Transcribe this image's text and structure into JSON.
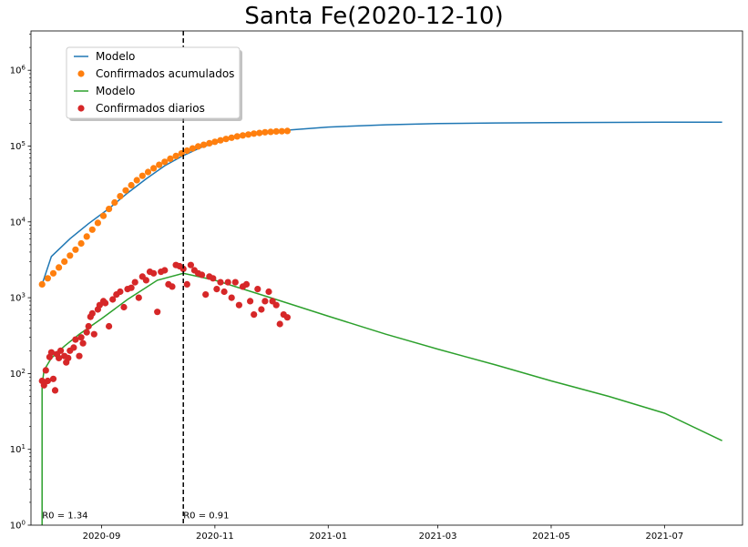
{
  "chart_data": {
    "type": "line",
    "title": "Santa Fe(2020-12-10)",
    "xlabel": "",
    "ylabel": "",
    "yscale": "log",
    "ylim": [
      1,
      3300000
    ],
    "xlim": [
      "2020-07-25",
      "2021-08-12"
    ],
    "grid": false,
    "legend_position": "top-left",
    "x_ticks": [
      "2020-09",
      "2020-11",
      "2021-01",
      "2021-03",
      "2021-05",
      "2021-07"
    ],
    "x_tick_dates": [
      "2020-09-01",
      "2020-11-01",
      "2021-01-01",
      "2021-03-01",
      "2021-05-01",
      "2021-07-01"
    ],
    "y_ticks": [
      {
        "value": 1,
        "base": "10",
        "exp": "0"
      },
      {
        "value": 10,
        "base": "10",
        "exp": "1"
      },
      {
        "value": 100,
        "base": "10",
        "exp": "2"
      },
      {
        "value": 1000,
        "base": "10",
        "exp": "3"
      },
      {
        "value": 10000,
        "base": "10",
        "exp": "4"
      },
      {
        "value": 100000,
        "base": "10",
        "exp": "5"
      },
      {
        "value": 1000000,
        "base": "10",
        "exp": "6"
      }
    ],
    "vline": {
      "date": "2020-10-15",
      "style": "dashed",
      "color": "#000000"
    },
    "annotations": [
      {
        "text": "R0 = 1.34",
        "date": "2020-07-31",
        "y": 1.2
      },
      {
        "text": "R0 = 0.91",
        "date": "2020-10-15",
        "y": 1.2
      }
    ],
    "series": [
      {
        "name": "Modelo",
        "kind": "line",
        "color": "#1f77b4",
        "x": [
          "2020-07-31",
          "2020-08-05",
          "2020-08-15",
          "2020-08-25",
          "2020-09-05",
          "2020-09-15",
          "2020-09-25",
          "2020-10-05",
          "2020-10-15",
          "2020-10-25",
          "2020-11-05",
          "2020-11-15",
          "2020-11-25",
          "2020-12-10",
          "2021-01-01",
          "2021-02-01",
          "2021-03-01",
          "2021-04-01",
          "2021-05-01",
          "2021-06-01",
          "2021-07-01",
          "2021-08-01"
        ],
        "y": [
          1500,
          3500,
          6000,
          9500,
          15000,
          24000,
          37000,
          55000,
          75000,
          97000,
          118000,
          135000,
          148000,
          162000,
          178000,
          191000,
          198000,
          202000,
          204000,
          205000,
          206000,
          206000
        ]
      },
      {
        "name": "Confirmados acumulados",
        "kind": "scatter",
        "color": "#ff7f0e",
        "x": [
          "2020-07-31",
          "2020-08-03",
          "2020-08-06",
          "2020-08-09",
          "2020-08-12",
          "2020-08-15",
          "2020-08-18",
          "2020-08-21",
          "2020-08-24",
          "2020-08-27",
          "2020-08-30",
          "2020-09-02",
          "2020-09-05",
          "2020-09-08",
          "2020-09-11",
          "2020-09-14",
          "2020-09-17",
          "2020-09-20",
          "2020-09-23",
          "2020-09-26",
          "2020-09-29",
          "2020-10-02",
          "2020-10-05",
          "2020-10-08",
          "2020-10-11",
          "2020-10-14",
          "2020-10-17",
          "2020-10-20",
          "2020-10-23",
          "2020-10-26",
          "2020-10-29",
          "2020-11-01",
          "2020-11-04",
          "2020-11-07",
          "2020-11-10",
          "2020-11-13",
          "2020-11-16",
          "2020-11-19",
          "2020-11-22",
          "2020-11-25",
          "2020-11-28",
          "2020-12-01",
          "2020-12-04",
          "2020-12-07",
          "2020-12-10"
        ],
        "y": [
          1500,
          1800,
          2100,
          2500,
          3000,
          3600,
          4300,
          5200,
          6400,
          7900,
          9700,
          12000,
          14800,
          18000,
          21800,
          26000,
          30500,
          35500,
          40500,
          45500,
          51000,
          56500,
          62000,
          68000,
          74000,
          80000,
          87000,
          93000,
          99000,
          104000,
          109000,
          114000,
          119000,
          124000,
          129000,
          134000,
          138000,
          142000,
          146000,
          149000,
          152000,
          154000,
          156000,
          157000,
          158000
        ]
      },
      {
        "name": "Modelo",
        "kind": "line",
        "color": "#2ca02c",
        "x": [
          "2020-07-31",
          "2020-07-31",
          "2020-08-01",
          "2020-08-05",
          "2020-08-12",
          "2020-08-20",
          "2020-09-01",
          "2020-09-15",
          "2020-10-01",
          "2020-10-15",
          "2020-11-01",
          "2020-12-01",
          "2021-01-01",
          "2021-02-01",
          "2021-03-01",
          "2021-04-01",
          "2021-05-01",
          "2021-06-01",
          "2021-07-01",
          "2021-08-01"
        ],
        "y": [
          1,
          70,
          110,
          160,
          230,
          330,
          530,
          950,
          1700,
          2100,
          1700,
          1000,
          570,
          330,
          210,
          130,
          80,
          50,
          30,
          13
        ]
      },
      {
        "name": "Confirmados diarios",
        "kind": "scatter",
        "color": "#d62728",
        "x": [
          "2020-07-31",
          "2020-08-01",
          "2020-08-02",
          "2020-08-03",
          "2020-08-04",
          "2020-08-05",
          "2020-08-06",
          "2020-08-07",
          "2020-08-08",
          "2020-08-09",
          "2020-08-10",
          "2020-08-12",
          "2020-08-13",
          "2020-08-14",
          "2020-08-15",
          "2020-08-17",
          "2020-08-18",
          "2020-08-20",
          "2020-08-21",
          "2020-08-22",
          "2020-08-24",
          "2020-08-25",
          "2020-08-26",
          "2020-08-27",
          "2020-08-28",
          "2020-08-30",
          "2020-08-31",
          "2020-09-02",
          "2020-09-03",
          "2020-09-05",
          "2020-09-07",
          "2020-09-09",
          "2020-09-11",
          "2020-09-13",
          "2020-09-15",
          "2020-09-17",
          "2020-09-19",
          "2020-09-21",
          "2020-09-23",
          "2020-09-25",
          "2020-09-27",
          "2020-09-29",
          "2020-10-01",
          "2020-10-03",
          "2020-10-05",
          "2020-10-07",
          "2020-10-09",
          "2020-10-11",
          "2020-10-13",
          "2020-10-15",
          "2020-10-17",
          "2020-10-19",
          "2020-10-21",
          "2020-10-23",
          "2020-10-25",
          "2020-10-27",
          "2020-10-29",
          "2020-10-31",
          "2020-11-02",
          "2020-11-04",
          "2020-11-06",
          "2020-11-08",
          "2020-11-10",
          "2020-11-12",
          "2020-11-14",
          "2020-11-16",
          "2020-11-18",
          "2020-11-20",
          "2020-11-22",
          "2020-11-24",
          "2020-11-26",
          "2020-11-28",
          "2020-11-30",
          "2020-12-02",
          "2020-12-04",
          "2020-12-06",
          "2020-12-08",
          "2020-12-10"
        ],
        "y": [
          80,
          70,
          110,
          80,
          165,
          190,
          85,
          60,
          180,
          160,
          200,
          170,
          140,
          160,
          200,
          220,
          280,
          170,
          300,
          250,
          350,
          420,
          560,
          620,
          330,
          700,
          800,
          900,
          850,
          420,
          950,
          1100,
          1200,
          750,
          1300,
          1350,
          1600,
          1000,
          1900,
          1700,
          2200,
          2100,
          650,
          2200,
          2300,
          1500,
          1400,
          2700,
          2600,
          2400,
          1500,
          2700,
          2300,
          2100,
          2000,
          1100,
          1900,
          1800,
          1300,
          1600,
          1200,
          1600,
          1000,
          1600,
          800,
          1400,
          1500,
          900,
          600,
          1300,
          700,
          900,
          1200,
          900,
          800,
          450,
          600,
          550
        ]
      }
    ],
    "legend": [
      {
        "label": "Modelo",
        "marker": "line",
        "color": "#1f77b4"
      },
      {
        "label": "Confirmados acumulados",
        "marker": "dot",
        "color": "#ff7f0e"
      },
      {
        "label": "Modelo",
        "marker": "line",
        "color": "#2ca02c"
      },
      {
        "label": "Confirmados diarios",
        "marker": "dot",
        "color": "#d62728"
      }
    ]
  }
}
